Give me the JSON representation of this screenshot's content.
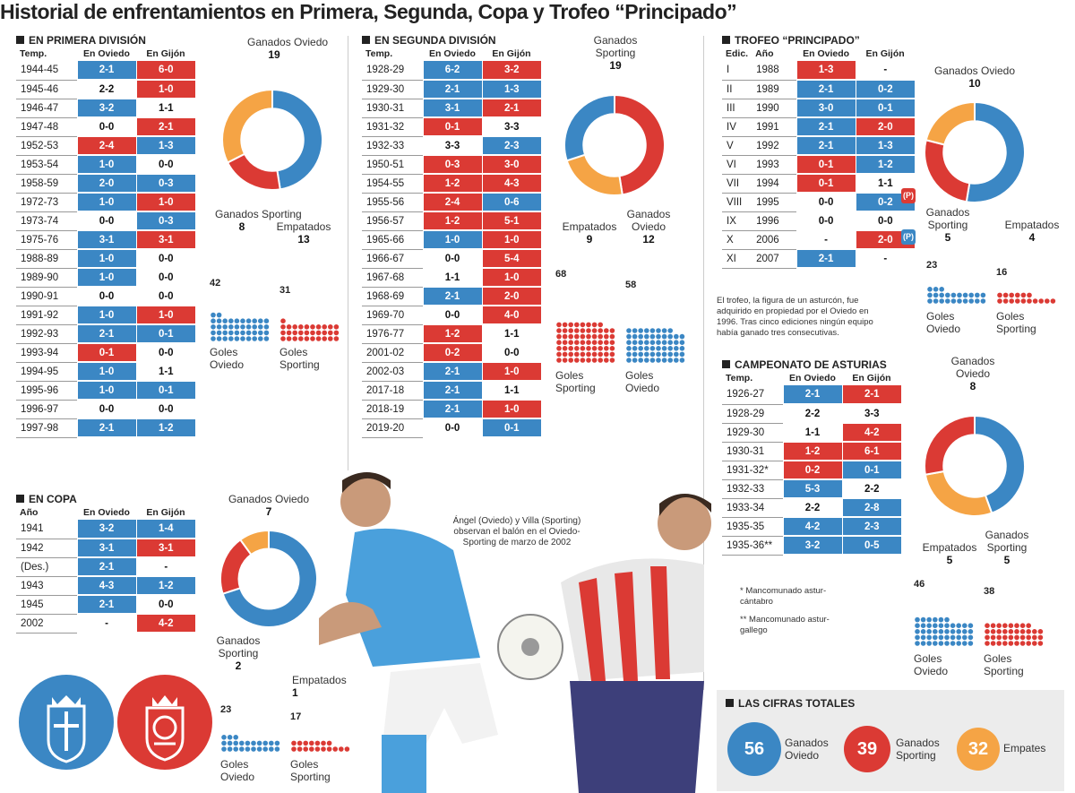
{
  "title": "Historial de enfrentamientos en Primera, Segunda, Copa y Trofeo “Principado”",
  "colors": {
    "oviedo": "#3b87c4",
    "sporting": "#db3a34",
    "empate": "#f5a445"
  },
  "primera": {
    "heading": "EN PRIMERA DIVISIÓN",
    "headers": [
      "Temp.",
      "En Oviedo",
      "En Gijón"
    ],
    "rows": [
      [
        "1944-45",
        "2-1",
        "B",
        "6-0",
        "R"
      ],
      [
        "1945-46",
        "2-2",
        "W",
        "1-0",
        "R"
      ],
      [
        "1946-47",
        "3-2",
        "B",
        "1-1",
        "W"
      ],
      [
        "1947-48",
        "0-0",
        "W",
        "2-1",
        "R"
      ],
      [
        "1952-53",
        "2-4",
        "R",
        "1-3",
        "B"
      ],
      [
        "1953-54",
        "1-0",
        "B",
        "0-0",
        "W"
      ],
      [
        "1958-59",
        "2-0",
        "B",
        "0-3",
        "B"
      ],
      [
        "1972-73",
        "1-0",
        "B",
        "1-0",
        "R"
      ],
      [
        "1973-74",
        "0-0",
        "W",
        "0-3",
        "B"
      ],
      [
        "1975-76",
        "3-1",
        "B",
        "3-1",
        "R"
      ],
      [
        "1988-89",
        "1-0",
        "B",
        "0-0",
        "W"
      ],
      [
        "1989-90",
        "1-0",
        "B",
        "0-0",
        "W"
      ],
      [
        "1990-91",
        "0-0",
        "W",
        "0-0",
        "W"
      ],
      [
        "1991-92",
        "1-0",
        "B",
        "1-0",
        "R"
      ],
      [
        "1992-93",
        "2-1",
        "B",
        "0-1",
        "B"
      ],
      [
        "1993-94",
        "0-1",
        "R",
        "0-0",
        "W"
      ],
      [
        "1994-95",
        "1-0",
        "B",
        "1-1",
        "W"
      ],
      [
        "1995-96",
        "1-0",
        "B",
        "0-1",
        "B"
      ],
      [
        "1996-97",
        "0-0",
        "W",
        "0-0",
        "W"
      ],
      [
        "1997-98",
        "2-1",
        "B",
        "1-2",
        "B"
      ]
    ],
    "stats": {
      "ganados_oviedo": 19,
      "ganados_sporting": 8,
      "empatados": 13,
      "goles_oviedo": 42,
      "goles_sporting": 31
    }
  },
  "segunda": {
    "heading": "EN SEGUNDA DIVISIÓN",
    "headers": [
      "Temp.",
      "En Oviedo",
      "En Gijón"
    ],
    "rows": [
      [
        "1928-29",
        "6-2",
        "B",
        "3-2",
        "R"
      ],
      [
        "1929-30",
        "2-1",
        "B",
        "1-3",
        "B"
      ],
      [
        "1930-31",
        "3-1",
        "B",
        "2-1",
        "R"
      ],
      [
        "1931-32",
        "0-1",
        "R",
        "3-3",
        "W"
      ],
      [
        "1932-33",
        "3-3",
        "W",
        "2-3",
        "B"
      ],
      [
        "1950-51",
        "0-3",
        "R",
        "3-0",
        "R"
      ],
      [
        "1954-55",
        "1-2",
        "R",
        "4-3",
        "R"
      ],
      [
        "1955-56",
        "2-4",
        "R",
        "0-6",
        "B"
      ],
      [
        "1956-57",
        "1-2",
        "R",
        "5-1",
        "R"
      ],
      [
        "1965-66",
        "1-0",
        "B",
        "1-0",
        "R"
      ],
      [
        "1966-67",
        "0-0",
        "W",
        "5-4",
        "R"
      ],
      [
        "1967-68",
        "1-1",
        "W",
        "1-0",
        "R"
      ],
      [
        "1968-69",
        "2-1",
        "B",
        "2-0",
        "R"
      ],
      [
        "1969-70",
        "0-0",
        "W",
        "4-0",
        "R"
      ],
      [
        "1976-77",
        "1-2",
        "R",
        "1-1",
        "W"
      ],
      [
        "2001-02",
        "0-2",
        "R",
        "0-0",
        "W"
      ],
      [
        "2002-03",
        "2-1",
        "B",
        "1-0",
        "R"
      ],
      [
        "2017-18",
        "2-1",
        "B",
        "1-1",
        "W"
      ],
      [
        "2018-19",
        "2-1",
        "B",
        "1-0",
        "R"
      ],
      [
        "2019-20",
        "0-0",
        "W",
        "0-1",
        "B"
      ]
    ],
    "stats": {
      "ganados_sporting": 19,
      "empatados": 9,
      "ganados_oviedo": 12,
      "goles_sporting": 68,
      "goles_oviedo": 58
    }
  },
  "trofeo": {
    "heading": "TROFEO “PRINCIPADO”",
    "headers": [
      "Edic.",
      "Año",
      "En Oviedo",
      "En Gijón"
    ],
    "rows": [
      [
        "I",
        "1988",
        "1-3",
        "R",
        "-",
        "W",
        ""
      ],
      [
        "II",
        "1989",
        "2-1",
        "B",
        "0-2",
        "B",
        ""
      ],
      [
        "III",
        "1990",
        "3-0",
        "B",
        "0-1",
        "B",
        ""
      ],
      [
        "IV",
        "1991",
        "2-1",
        "B",
        "2-0",
        "R",
        ""
      ],
      [
        "V",
        "1992",
        "2-1",
        "B",
        "1-3",
        "B",
        ""
      ],
      [
        "VI",
        "1993",
        "0-1",
        "R",
        "1-2",
        "B",
        ""
      ],
      [
        "VII",
        "1994",
        "0-1",
        "R",
        "1-1",
        "W",
        "(P)"
      ],
      [
        "VIII",
        "1995",
        "0-0",
        "W",
        "0-2",
        "B",
        ""
      ],
      [
        "IX",
        "1996",
        "0-0",
        "W",
        "0-0",
        "W",
        "(P)"
      ],
      [
        "X",
        "2006",
        "-",
        "W",
        "2-0",
        "R",
        ""
      ],
      [
        "XI",
        "2007",
        "2-1",
        "B",
        "-",
        "W",
        ""
      ]
    ],
    "note": "El trofeo, la figura de un asturcón, fue adquirido en propiedad por el Oviedo en 1996. Tras cinco ediciones ningún equipo había ganado tres consecutivas.",
    "stats": {
      "ganados_oviedo": 10,
      "ganados_sporting": 5,
      "empatados": 4,
      "goles_oviedo": 23,
      "goles_sporting": 16
    }
  },
  "asturias": {
    "heading": "CAMPEONATO DE ASTURIAS",
    "headers": [
      "Temp.",
      "En Oviedo",
      "En Gijón"
    ],
    "rows": [
      [
        "1926-27",
        "2-1",
        "B",
        "2-1",
        "R"
      ],
      [
        "1928-29",
        "2-2",
        "W",
        "3-3",
        "W"
      ],
      [
        "1929-30",
        "1-1",
        "W",
        "4-2",
        "R"
      ],
      [
        "1930-31",
        "1-2",
        "R",
        "6-1",
        "R"
      ],
      [
        "1931-32*",
        "0-2",
        "R",
        "0-1",
        "B"
      ],
      [
        "1932-33",
        "5-3",
        "B",
        "2-2",
        "W"
      ],
      [
        "1933-34",
        "2-2",
        "W",
        "2-8",
        "B"
      ],
      [
        "1935-35",
        "4-2",
        "B",
        "2-3",
        "B"
      ],
      [
        "1935-36**",
        "3-2",
        "B",
        "0-5",
        "B"
      ]
    ],
    "note1": "* Mancomunado astur-cántabro",
    "note2": "** Mancomunado astur-gallego",
    "stats": {
      "ganados_oviedo": 8,
      "empatados": 5,
      "ganados_sporting": 5,
      "goles_oviedo": 46,
      "goles_sporting": 38
    }
  },
  "copa": {
    "heading": "EN COPA",
    "headers": [
      "Año",
      "En Oviedo",
      "En Gijón"
    ],
    "rows": [
      [
        "1941",
        "3-2",
        "B",
        "1-4",
        "B"
      ],
      [
        "1942",
        "3-1",
        "B",
        "3-1",
        "R"
      ],
      [
        "(Des.)",
        "2-1",
        "B",
        "-",
        "W"
      ],
      [
        "1943",
        "4-3",
        "B",
        "1-2",
        "B"
      ],
      [
        "1945",
        "2-1",
        "B",
        "0-0",
        "W"
      ],
      [
        "2002",
        "-",
        "W",
        "4-2",
        "R"
      ]
    ],
    "stats": {
      "ganados_oviedo": 7,
      "ganados_sporting": 2,
      "empatados": 1,
      "goles_oviedo": 23,
      "goles_sporting": 17
    }
  },
  "labels": {
    "ganados_oviedo": "Ganados Oviedo",
    "ganados_sporting": "Ganados Sporting",
    "empatados": "Empatados",
    "goles_oviedo": "Goles Oviedo",
    "goles_sporting": "Goles Sporting"
  },
  "photo_caption": "Ángel (Oviedo) y Villa (Sporting) observan el balón en el Oviedo-Sporting de marzo de 2002",
  "totales": {
    "heading": "LAS CIFRAS TOTALES",
    "ganados_oviedo": "56",
    "ganados_oviedo_label": "Ganados Oviedo",
    "ganados_sporting": "39",
    "ganados_sporting_label": "Ganados Sporting",
    "empates": "32",
    "empates_label": "Empates"
  },
  "chart_data": [
    {
      "type": "pie",
      "name": "primera",
      "labels": [
        "Ganados Oviedo",
        "Ganados Sporting",
        "Empatados"
      ],
      "values": [
        19,
        8,
        13
      ]
    },
    {
      "type": "pie",
      "name": "segunda",
      "labels": [
        "Ganados Sporting",
        "Empatados",
        "Ganados Oviedo"
      ],
      "values": [
        19,
        9,
        12
      ]
    },
    {
      "type": "pie",
      "name": "trofeo",
      "labels": [
        "Ganados Oviedo",
        "Ganados Sporting",
        "Empatados"
      ],
      "values": [
        10,
        5,
        4
      ]
    },
    {
      "type": "pie",
      "name": "copa",
      "labels": [
        "Ganados Oviedo",
        "Ganados Sporting",
        "Empatados"
      ],
      "values": [
        7,
        2,
        1
      ]
    },
    {
      "type": "pie",
      "name": "asturias",
      "labels": [
        "Ganados Oviedo",
        "Empatados",
        "Ganados Sporting"
      ],
      "values": [
        8,
        5,
        5
      ]
    }
  ]
}
